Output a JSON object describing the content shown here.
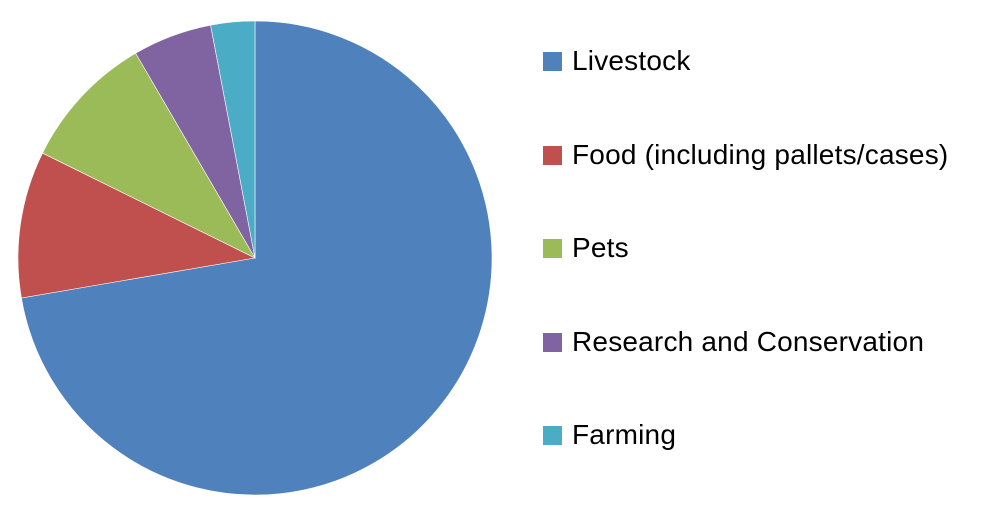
{
  "chart_data": {
    "type": "pie",
    "title": "",
    "categories": [
      "Livestock",
      "Food (including pallets/cases)",
      "Pets",
      "Research and Conservation",
      "Farming"
    ],
    "values": [
      72.3,
      10.0,
      9.3,
      5.4,
      3.0
    ],
    "unit": "percent (estimated from slice angles)",
    "colors": [
      "#4f81bd",
      "#c0504d",
      "#9bbb59",
      "#8064a2",
      "#4bacc6"
    ],
    "start_angle": "12 o'clock, clockwise",
    "legend_position": "right"
  },
  "legend": {
    "items": [
      {
        "label": "Livestock",
        "color": "#4f81bd"
      },
      {
        "label": "Food (including pallets/cases)",
        "color": "#c0504d"
      },
      {
        "label": "Pets",
        "color": "#9bbb59"
      },
      {
        "label": "Research and Conservation",
        "color": "#8064a2"
      },
      {
        "label": "Farming",
        "color": "#4bacc6"
      }
    ]
  }
}
